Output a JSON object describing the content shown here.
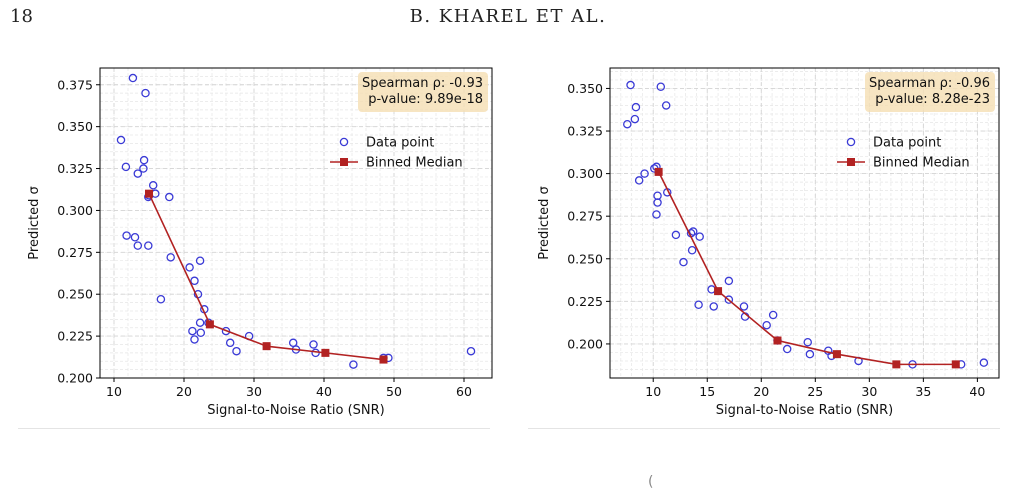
{
  "page": {
    "number": "18",
    "running_head": "B. KHAREL ET AL."
  },
  "chart_data": [
    {
      "type": "scatter",
      "xlabel": "Signal-to-Noise Ratio (SNR)",
      "ylabel": "Predicted σ",
      "xlim": [
        8,
        64
      ],
      "ylim": [
        0.2,
        0.385
      ],
      "xticks": [
        10,
        20,
        30,
        40,
        50,
        60
      ],
      "yticks": [
        0.2,
        0.225,
        0.25,
        0.275,
        0.3,
        0.325,
        0.35,
        0.375
      ],
      "grid": true,
      "legend_position": "upper-right",
      "stat_lines": [
        "Spearman ρ: -0.93",
        "p-value: 9.89e-18"
      ],
      "colors": {
        "points": "#3a3ad6",
        "median": "#b22222",
        "stat_box": "#f5deb3"
      },
      "series": [
        {
          "name": "Data point",
          "kind": "scatter",
          "x": [
            12.7,
            14.5,
            11.0,
            11.7,
            14.3,
            14.2,
            13.4,
            15.6,
            15.0,
            14.9,
            15.9,
            17.9,
            11.8,
            13.0,
            13.4,
            14.9,
            18.1,
            16.7,
            20.8,
            22.3,
            21.5,
            22.0,
            22.3,
            22.9,
            23.5,
            21.2,
            22.4,
            21.5,
            26.0,
            29.3,
            26.6,
            27.5,
            35.6,
            36.0,
            38.5,
            38.8,
            44.2,
            48.5,
            49.2,
            61.0
          ],
          "y": [
            0.379,
            0.37,
            0.342,
            0.326,
            0.33,
            0.325,
            0.322,
            0.315,
            0.309,
            0.308,
            0.31,
            0.308,
            0.285,
            0.284,
            0.279,
            0.279,
            0.272,
            0.247,
            0.266,
            0.27,
            0.258,
            0.25,
            0.233,
            0.241,
            0.233,
            0.228,
            0.227,
            0.223,
            0.228,
            0.225,
            0.221,
            0.216,
            0.221,
            0.217,
            0.22,
            0.215,
            0.208,
            0.212,
            0.212,
            0.216
          ]
        },
        {
          "name": "Binned Median",
          "kind": "line",
          "x": [
            15.0,
            23.7,
            31.8,
            40.2,
            48.5
          ],
          "y": [
            0.31,
            0.232,
            0.219,
            0.215,
            0.211
          ]
        }
      ]
    },
    {
      "type": "scatter",
      "xlabel": "Signal-to-Noise Ratio (SNR)",
      "ylabel": "Predicted σ",
      "xlim": [
        6,
        42
      ],
      "ylim": [
        0.18,
        0.362
      ],
      "xticks": [
        10,
        15,
        20,
        25,
        30,
        35,
        40
      ],
      "yticks": [
        0.2,
        0.225,
        0.25,
        0.275,
        0.3,
        0.325,
        0.35
      ],
      "grid": true,
      "legend_position": "upper-right",
      "stat_lines": [
        "Spearman ρ: -0.96",
        "p-value: 8.28e-23"
      ],
      "colors": {
        "points": "#3a3ad6",
        "median": "#b22222",
        "stat_box": "#f5deb3"
      },
      "series": [
        {
          "name": "Data point",
          "kind": "scatter",
          "x": [
            7.9,
            10.7,
            8.4,
            8.3,
            7.6,
            11.2,
            10.1,
            10.3,
            9.2,
            8.7,
            11.3,
            10.4,
            10.4,
            10.3,
            12.1,
            13.7,
            13.5,
            14.3,
            13.6,
            12.8,
            17.0,
            17.0,
            15.4,
            14.2,
            15.6,
            18.4,
            18.5,
            21.1,
            20.5,
            21.5,
            22.4,
            24.3,
            24.5,
            26.2,
            26.5,
            29.0,
            34.0,
            38.5,
            40.6
          ],
          "y": [
            0.352,
            0.351,
            0.339,
            0.332,
            0.329,
            0.34,
            0.303,
            0.304,
            0.3,
            0.296,
            0.289,
            0.287,
            0.283,
            0.276,
            0.264,
            0.266,
            0.265,
            0.263,
            0.255,
            0.248,
            0.237,
            0.226,
            0.232,
            0.223,
            0.222,
            0.222,
            0.216,
            0.217,
            0.211,
            0.202,
            0.197,
            0.201,
            0.194,
            0.196,
            0.193,
            0.19,
            0.188,
            0.188,
            0.189
          ]
        },
        {
          "name": "Binned Median",
          "kind": "line",
          "x": [
            10.5,
            16.0,
            21.5,
            27.0,
            32.5,
            38.0
          ],
          "y": [
            0.301,
            0.231,
            0.202,
            0.194,
            0.188,
            0.188
          ]
        }
      ]
    }
  ]
}
